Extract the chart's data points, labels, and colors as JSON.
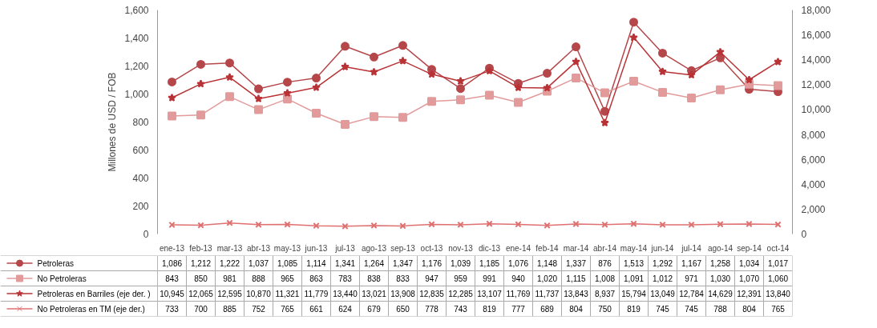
{
  "chart_data": {
    "type": "line",
    "ylabel": "Millones de USD / FOB",
    "categories": [
      "ene-13",
      "feb-13",
      "mar-13",
      "abr-13",
      "may-13",
      "jun-13",
      "jul-13",
      "ago-13",
      "sep-13",
      "oct-13",
      "nov-13",
      "dic-13",
      "ene-14",
      "feb-14",
      "mar-14",
      "abr-14",
      "may-14",
      "jun-14",
      "jul-14",
      "ago-14",
      "sep-14",
      "oct-14"
    ],
    "series": [
      {
        "name": "Petroleras",
        "color": "#b5474a",
        "marker": "circle",
        "values": [
          1086,
          1212,
          1222,
          1037,
          1085,
          1114,
          1341,
          1264,
          1347,
          1176,
          1039,
          1185,
          1076,
          1148,
          1337,
          876,
          1513,
          1292,
          1167,
          1258,
          1034,
          1017
        ],
        "value_labels": [
          "1,086",
          "1,212",
          "1,222",
          "1,037",
          "1,085",
          "1,114",
          "1,341",
          "1,264",
          "1,347",
          "1,176",
          "1,039",
          "1,185",
          "1,076",
          "1,148",
          "1,337",
          "876",
          "1,513",
          "1,292",
          "1,167",
          "1,258",
          "1,034",
          "1,017"
        ]
      },
      {
        "name": "No Petroleras",
        "color": "#e39a9a",
        "marker": "square",
        "values": [
          843,
          850,
          981,
          888,
          965,
          863,
          783,
          838,
          833,
          947,
          959,
          991,
          940,
          1020,
          1115,
          1008,
          1091,
          1012,
          971,
          1030,
          1070,
          1060
        ],
        "value_labels": [
          "843",
          "850",
          "981",
          "888",
          "965",
          "863",
          "783",
          "838",
          "833",
          "947",
          "959",
          "991",
          "940",
          "1,020",
          "1,115",
          "1,008",
          "1,091",
          "1,012",
          "971",
          "1,030",
          "1,070",
          "1,060"
        ]
      },
      {
        "name": "Petroleras en Barriles (eje der. )",
        "color": "#b83236",
        "marker": "star",
        "axis": "y2",
        "values": [
          10945,
          12065,
          12595,
          10870,
          11321,
          11779,
          13440,
          13021,
          13908,
          12835,
          12285,
          13107,
          11769,
          11737,
          13843,
          8937,
          15794,
          13049,
          12784,
          14629,
          12391,
          13840
        ],
        "value_labels": [
          "10,945",
          "12,065",
          "12,595",
          "10,870",
          "11,321",
          "11,779",
          "13,440",
          "13,021",
          "13,908",
          "12,835",
          "12,285",
          "13,107",
          "11,769",
          "11,737",
          "13,843",
          "8,937",
          "15,794",
          "13,049",
          "12,784",
          "14,629",
          "12,391",
          "13,840"
        ]
      },
      {
        "name": "No Petroleras en TM (eje der.)",
        "color": "#e07070",
        "marker": "cross",
        "axis": "y2",
        "values": [
          733,
          700,
          885,
          752,
          765,
          661,
          624,
          679,
          650,
          778,
          743,
          819,
          777,
          689,
          804,
          750,
          819,
          745,
          745,
          788,
          804,
          765
        ],
        "value_labels": [
          "733",
          "700",
          "885",
          "752",
          "765",
          "661",
          "624",
          "679",
          "650",
          "778",
          "743",
          "819",
          "777",
          "689",
          "804",
          "750",
          "819",
          "745",
          "745",
          "788",
          "804",
          "765"
        ]
      }
    ],
    "ylim": [
      0,
      1600
    ],
    "yticks": [
      0,
      200,
      400,
      600,
      800,
      {
        "value": 1000,
        "label": "1,000"
      },
      {
        "value": 1200,
        "label": "1,200"
      },
      {
        "value": 1400,
        "label": "1,400"
      },
      {
        "value": 1600,
        "label": "1,600"
      }
    ],
    "y2lim": [
      0,
      18000
    ],
    "y2ticks": [
      0,
      {
        "value": 2000,
        "label": "2,000"
      },
      {
        "value": 4000,
        "label": "4,000"
      },
      {
        "value": 6000,
        "label": "6,000"
      },
      {
        "value": 8000,
        "label": "8,000"
      },
      {
        "value": 10000,
        "label": "10,000"
      },
      {
        "value": 12000,
        "label": "12,000"
      },
      {
        "value": 14000,
        "label": "14,000"
      },
      {
        "value": 16000,
        "label": "16,000"
      },
      {
        "value": 18000,
        "label": "18,000"
      }
    ],
    "legend": "bottom left",
    "grid": false,
    "line_style": "solid"
  }
}
